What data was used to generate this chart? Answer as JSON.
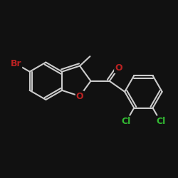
{
  "bg_color": "#111111",
  "bond_color": "#cccccc",
  "atom_colors": {
    "Br": "#bb2222",
    "O": "#bb2222",
    "Cl": "#33bb33",
    "C": "#cccccc"
  },
  "lw": 1.5,
  "fs": 9.0
}
